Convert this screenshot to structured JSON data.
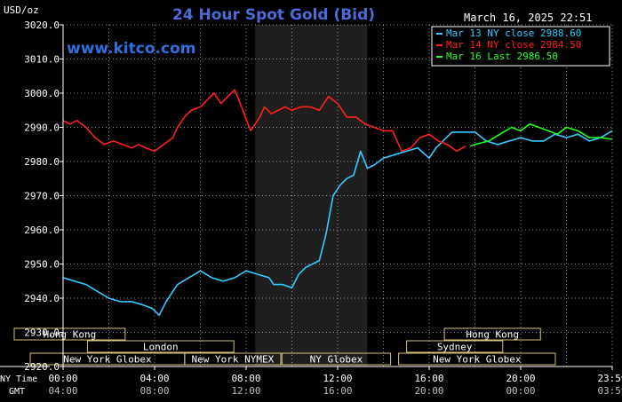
{
  "header": {
    "unit_label": "USD/oz",
    "title": "24 Hour Spot Gold (Bid)",
    "datetime": "March 16, 2025 22:51",
    "watermark": "www.kitco.com"
  },
  "legend": [
    {
      "text": "Mar 13 NY close 2988.60",
      "color": "#33ccff"
    },
    {
      "text": "Mar 14 NY close 2984.50",
      "color": "#ff2020"
    },
    {
      "text": "Mar 16 Last 2986.50",
      "color": "#22ff22"
    }
  ],
  "row_labels": {
    "ny": "NY Time",
    "gmt": "GMT"
  },
  "markets": [
    {
      "label": "Hong Kong",
      "start": 0,
      "end": 9.7,
      "row": 0
    },
    {
      "label": "London",
      "start": 6.4,
      "end": 19.2,
      "row": 1
    },
    {
      "label": "New York Globex",
      "start": 1.4,
      "end": 14.9,
      "row": 2
    },
    {
      "label": "New York NYMEX",
      "start": 14.9,
      "end": 23.3,
      "row": 2
    },
    {
      "label": "NY Globex",
      "start": 23.4,
      "end": 32.9,
      "row": 2
    },
    {
      "label": "Hong Kong",
      "start": 37.6,
      "end": 46,
      "row": 0
    },
    {
      "label": "Sydney",
      "start": 34.3,
      "end": 42.7,
      "row": 1
    },
    {
      "label": "New York Globex",
      "start": 33.6,
      "end": 47.3,
      "row": 2
    }
  ],
  "chart_data": {
    "type": "line",
    "ylabel": "USD/oz",
    "ylim": [
      2920,
      3020
    ],
    "yticks": [
      "3020.0",
      "3010.0",
      "3000.0",
      "2990.0",
      "2980.0",
      "2970.0",
      "2960.0",
      "2950.0",
      "2940.0",
      "2930.0",
      "2920.0"
    ],
    "xlim": [
      0,
      24
    ],
    "xticks_ny": [
      "00:00",
      "04:00",
      "08:00",
      "12:00",
      "16:00",
      "20:00",
      "23:59"
    ],
    "xticks_gmt": [
      "04:00",
      "08:00",
      "12:00",
      "16:00",
      "20:00",
      "00:00",
      "03:59"
    ],
    "x_tick_positions": [
      0,
      4,
      8,
      12,
      16,
      20,
      24
    ],
    "shaded_region": [
      8.4,
      13.3
    ],
    "series": [
      {
        "name": "Mar 13 NY close 2988.60",
        "color": "#33ccff",
        "x": [
          0,
          0.5,
          1.0,
          1.5,
          2.0,
          2.5,
          3.0,
          3.5,
          3.9,
          4.2,
          4.5,
          4.8,
          5.0,
          5.5,
          6.0,
          6.5,
          7.0,
          7.5,
          8.0,
          8.5,
          9.0,
          9.2,
          9.6,
          10.0,
          10.3,
          10.6,
          10.9,
          11.2,
          11.5,
          11.8,
          12.1,
          12.4,
          12.7,
          13.0,
          13.3,
          13.6,
          14.0,
          14.5,
          15.0,
          15.5,
          16.0,
          16.3,
          16.6,
          17.0,
          17.4,
          18.0,
          18.5,
          19.0,
          19.5,
          20.0,
          20.5,
          21.0,
          21.5,
          22.0,
          22.5,
          23.0,
          23.5,
          24.0
        ],
        "values": [
          2946,
          2945,
          2944,
          2942,
          2940,
          2939,
          2939,
          2938,
          2937,
          2935,
          2939,
          2942,
          2944,
          2946,
          2948,
          2946,
          2945,
          2946,
          2948,
          2947,
          2946,
          2944,
          2944,
          2943,
          2947,
          2949,
          2950,
          2951,
          2959,
          2970,
          2973,
          2975,
          2976,
          2983,
          2978,
          2979,
          2981,
          2982,
          2983,
          2984,
          2981,
          2984,
          2986,
          2988.6,
          2988.6,
          2988.6,
          2986,
          2985,
          2986,
          2987,
          2986,
          2986,
          2988,
          2987,
          2988,
          2986,
          2987,
          2989
        ]
      },
      {
        "name": "Mar 14 NY close 2984.50",
        "color": "#ff2020",
        "x": [
          0,
          0.3,
          0.6,
          1.0,
          1.4,
          1.8,
          2.2,
          2.6,
          3.0,
          3.3,
          3.6,
          4.0,
          4.4,
          4.8,
          5.0,
          5.3,
          5.6,
          6.0,
          6.3,
          6.6,
          6.9,
          7.2,
          7.5,
          7.8,
          8.2,
          8.6,
          8.8,
          9.1,
          9.4,
          9.7,
          10.0,
          10.4,
          10.8,
          11.2,
          11.6,
          12.0,
          12.4,
          12.8,
          13.2,
          13.6,
          14.0,
          14.4,
          14.8,
          15.2,
          15.6,
          16.0,
          16.4,
          16.8,
          17.2,
          17.6
        ],
        "values": [
          2992,
          2991,
          2992,
          2990,
          2987,
          2985,
          2986,
          2985,
          2984,
          2985,
          2984,
          2983,
          2985,
          2987,
          2990,
          2993,
          2995,
          2996,
          2998,
          3000,
          2997,
          2999,
          3001,
          2996,
          2989,
          2993,
          2996,
          2994,
          2995,
          2996,
          2995,
          2996,
          2996,
          2995,
          2999,
          2997,
          2993,
          2993,
          2991,
          2990,
          2989,
          2989,
          2983,
          2984,
          2987,
          2988,
          2986,
          2985,
          2983,
          2984.5
        ]
      },
      {
        "name": "Mar 16 Last 2986.50",
        "color": "#22ff22",
        "x": [
          17.8,
          18.0,
          18.6,
          19.1,
          19.6,
          20.0,
          20.4,
          20.8,
          21.2,
          21.6,
          22.0,
          22.5,
          23.0,
          23.5,
          24.0
        ],
        "values": [
          2984.5,
          2985,
          2986,
          2988,
          2990,
          2989,
          2991,
          2990,
          2989,
          2988,
          2990,
          2989,
          2987,
          2987,
          2986.5
        ]
      }
    ]
  }
}
